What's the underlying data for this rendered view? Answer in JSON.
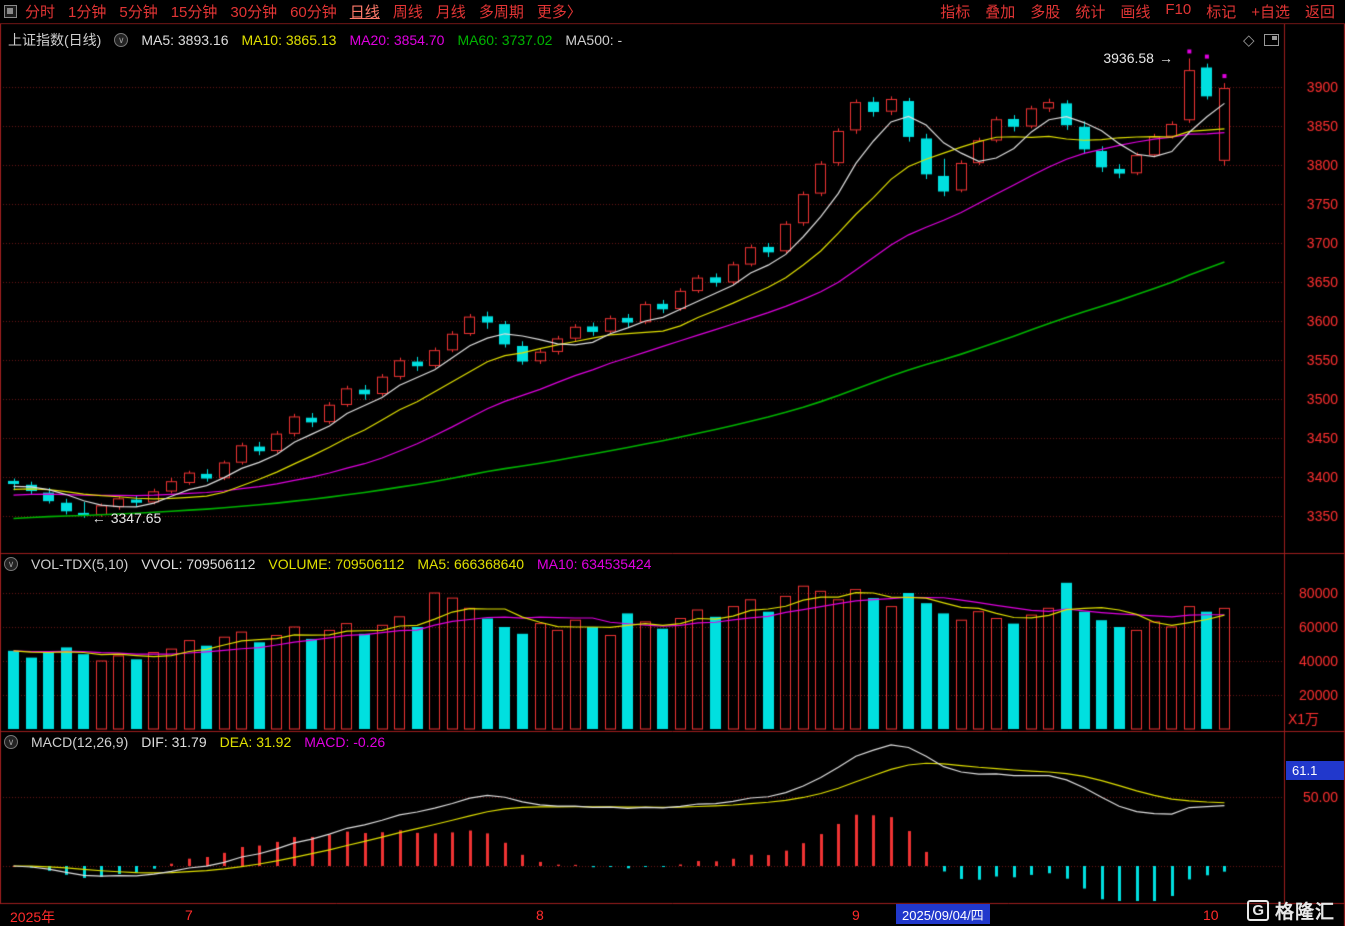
{
  "toolbar": {
    "left": [
      "分时",
      "1分钟",
      "5分钟",
      "15分钟",
      "30分钟",
      "60分钟",
      "日线",
      "周线",
      "月线",
      "多周期",
      "更多〉"
    ],
    "active": "日线",
    "right": [
      "指标",
      "叠加",
      "多股",
      "统计",
      "画线",
      "F10",
      "标记",
      "+自选",
      "返回"
    ]
  },
  "main_header": {
    "title": "上证指数(日线)",
    "ma5": "MA5: 3893.16",
    "ma10": "MA10: 3865.13",
    "ma20": "MA20: 3854.70",
    "ma60": "MA60: 3737.02",
    "ma500": "MA500: -"
  },
  "volume_header": {
    "name": "VOL-TDX(5,10)",
    "vvol": "VVOL: 709506112",
    "volume": "VOLUME: 709506112",
    "ma5": "MA5: 666368640",
    "ma10": "MA10: 634535424"
  },
  "macd_header": {
    "name": "MACD(12,26,9)",
    "dif": "DIF: 31.79",
    "dea": "DEA: 31.92",
    "macd": "MACD: -0.26"
  },
  "annotations": {
    "high": "3936.58",
    "high_arrow": "→",
    "low_arrow": "←",
    "low": "3347.65"
  },
  "readouts": {
    "macd_value": "61.1",
    "date": "2025/09/04/四"
  },
  "time_axis": {
    "year": "2025年",
    "months": [
      "7",
      "8",
      "9",
      "10"
    ]
  },
  "watermark": {
    "logo": "G",
    "text": "格隆汇"
  },
  "colors": {
    "up": "#ee3333",
    "down": "#00e0e0",
    "ma5": "#dedede",
    "ma10": "#e0e000",
    "ma20": "#e000e0",
    "ma60": "#00b400",
    "grid": "#6a1616",
    "frame": "#9e1e1e",
    "axis_text": "#ff3030",
    "highlight": "#2138cc"
  },
  "chart_data": {
    "type": "candlestick",
    "title": "上证指数(日线)",
    "panes": [
      "price",
      "volume",
      "macd"
    ],
    "price_ticks": [
      3900,
      3850,
      3800,
      3750,
      3700,
      3650,
      3600,
      3550,
      3500,
      3450,
      3400,
      3350
    ],
    "volume_ticks": [
      80000,
      60000,
      40000,
      20000
    ],
    "volume_unit": "X1万",
    "macd_ticks": [
      50
    ],
    "macd_tick_labels": [
      "50.00"
    ],
    "period_high": 3936.58,
    "period_low": 3347.65,
    "month_start_indices": [
      10,
      30,
      48,
      68
    ],
    "crosshair_index": 53,
    "new_high_marker_indices": [
      67,
      68,
      69
    ],
    "ma_current": {
      "MA5": 3893.16,
      "MA10": 3865.13,
      "MA20": 3854.7,
      "MA60": 3737.02,
      "MA500": null
    },
    "volume_current": {
      "VVOL": 709506112,
      "VOLUME": 709506112,
      "MA5": 666368640,
      "MA10": 634535424
    },
    "macd_current": {
      "DIF": 31.79,
      "DEA": 31.92,
      "MACD": -0.26
    },
    "candles": [
      [
        3395,
        3398,
        3383,
        3391,
        46000
      ],
      [
        3390,
        3394,
        3378,
        3382,
        42000
      ],
      [
        3380,
        3386,
        3366,
        3369,
        45000
      ],
      [
        3367,
        3372,
        3352,
        3356,
        48000
      ],
      [
        3354,
        3368,
        3347.65,
        3350,
        44000
      ],
      [
        3352,
        3366,
        3349,
        3363,
        40000
      ],
      [
        3362,
        3375,
        3358,
        3372,
        43000
      ],
      [
        3371,
        3376,
        3362,
        3367,
        41000
      ],
      [
        3368,
        3385,
        3365,
        3381,
        45000
      ],
      [
        3382,
        3399,
        3379,
        3394,
        47000
      ],
      [
        3393,
        3408,
        3390,
        3405,
        52000
      ],
      [
        3404,
        3410,
        3394,
        3398,
        49000
      ],
      [
        3399,
        3421,
        3396,
        3418,
        54000
      ],
      [
        3419,
        3444,
        3416,
        3440,
        57000
      ],
      [
        3439,
        3445,
        3428,
        3433,
        51000
      ],
      [
        3434,
        3459,
        3431,
        3455,
        55000
      ],
      [
        3456,
        3481,
        3452,
        3477,
        60000
      ],
      [
        3476,
        3482,
        3464,
        3470,
        53000
      ],
      [
        3471,
        3496,
        3468,
        3492,
        58000
      ],
      [
        3493,
        3517,
        3490,
        3513,
        62000
      ],
      [
        3512,
        3518,
        3499,
        3506,
        56000
      ],
      [
        3507,
        3532,
        3504,
        3528,
        61000
      ],
      [
        3529,
        3553,
        3525,
        3549,
        66000
      ],
      [
        3548,
        3554,
        3536,
        3542,
        60000
      ],
      [
        3543,
        3566,
        3540,
        3562,
        80000
      ],
      [
        3563,
        3587,
        3560,
        3583,
        77000
      ],
      [
        3584,
        3609,
        3581,
        3605,
        71000
      ],
      [
        3606,
        3612,
        3590,
        3598,
        65000
      ],
      [
        3596,
        3600,
        3566,
        3570,
        60000
      ],
      [
        3568,
        3574,
        3544,
        3548,
        56000
      ],
      [
        3549,
        3564,
        3545,
        3560,
        62000
      ],
      [
        3561,
        3581,
        3557,
        3577,
        58000
      ],
      [
        3578,
        3596,
        3574,
        3592,
        64000
      ],
      [
        3593,
        3598,
        3581,
        3586,
        60000
      ],
      [
        3587,
        3607,
        3584,
        3603,
        55000
      ],
      [
        3604,
        3609,
        3592,
        3598,
        68000
      ],
      [
        3599,
        3625,
        3596,
        3621,
        63000
      ],
      [
        3622,
        3627,
        3610,
        3615,
        59000
      ],
      [
        3616,
        3642,
        3613,
        3638,
        65000
      ],
      [
        3639,
        3659,
        3636,
        3655,
        70000
      ],
      [
        3656,
        3661,
        3644,
        3649,
        66000
      ],
      [
        3650,
        3676,
        3647,
        3672,
        72000
      ],
      [
        3673,
        3698,
        3670,
        3694,
        76000
      ],
      [
        3695,
        3700,
        3682,
        3688,
        69000
      ],
      [
        3690,
        3728,
        3687,
        3724,
        78000
      ],
      [
        3726,
        3766,
        3722,
        3762,
        84000
      ],
      [
        3764,
        3805,
        3760,
        3801,
        81000
      ],
      [
        3803,
        3847,
        3799,
        3843,
        76000
      ],
      [
        3845,
        3884,
        3840,
        3880,
        82000
      ],
      [
        3881,
        3887,
        3862,
        3868,
        77000
      ],
      [
        3869,
        3888,
        3864,
        3884,
        72000
      ],
      [
        3882,
        3886,
        3830,
        3836,
        80000
      ],
      [
        3834,
        3840,
        3782,
        3788,
        74000
      ],
      [
        3786,
        3808,
        3760,
        3766,
        68000
      ],
      [
        3768,
        3806,
        3765,
        3802,
        64000
      ],
      [
        3803,
        3835,
        3800,
        3831,
        69000
      ],
      [
        3832,
        3862,
        3829,
        3858,
        65000
      ],
      [
        3859,
        3864,
        3843,
        3849,
        62000
      ],
      [
        3850,
        3876,
        3847,
        3872,
        67000
      ],
      [
        3873,
        3885,
        3868,
        3880,
        71000
      ],
      [
        3879,
        3883,
        3845,
        3851,
        86000
      ],
      [
        3849,
        3856,
        3814,
        3820,
        69000
      ],
      [
        3818,
        3824,
        3791,
        3797,
        64000
      ],
      [
        3795,
        3801,
        3783,
        3789,
        60000
      ],
      [
        3790,
        3816,
        3787,
        3812,
        58000
      ],
      [
        3813,
        3840,
        3810,
        3836,
        63000
      ],
      [
        3837,
        3856,
        3834,
        3852,
        60000
      ],
      [
        3858,
        3936.58,
        3854,
        3921,
        72000
      ],
      [
        3925,
        3930,
        3884,
        3888,
        69000
      ],
      [
        3806,
        3905,
        3799,
        3898,
        70950
      ]
    ]
  }
}
